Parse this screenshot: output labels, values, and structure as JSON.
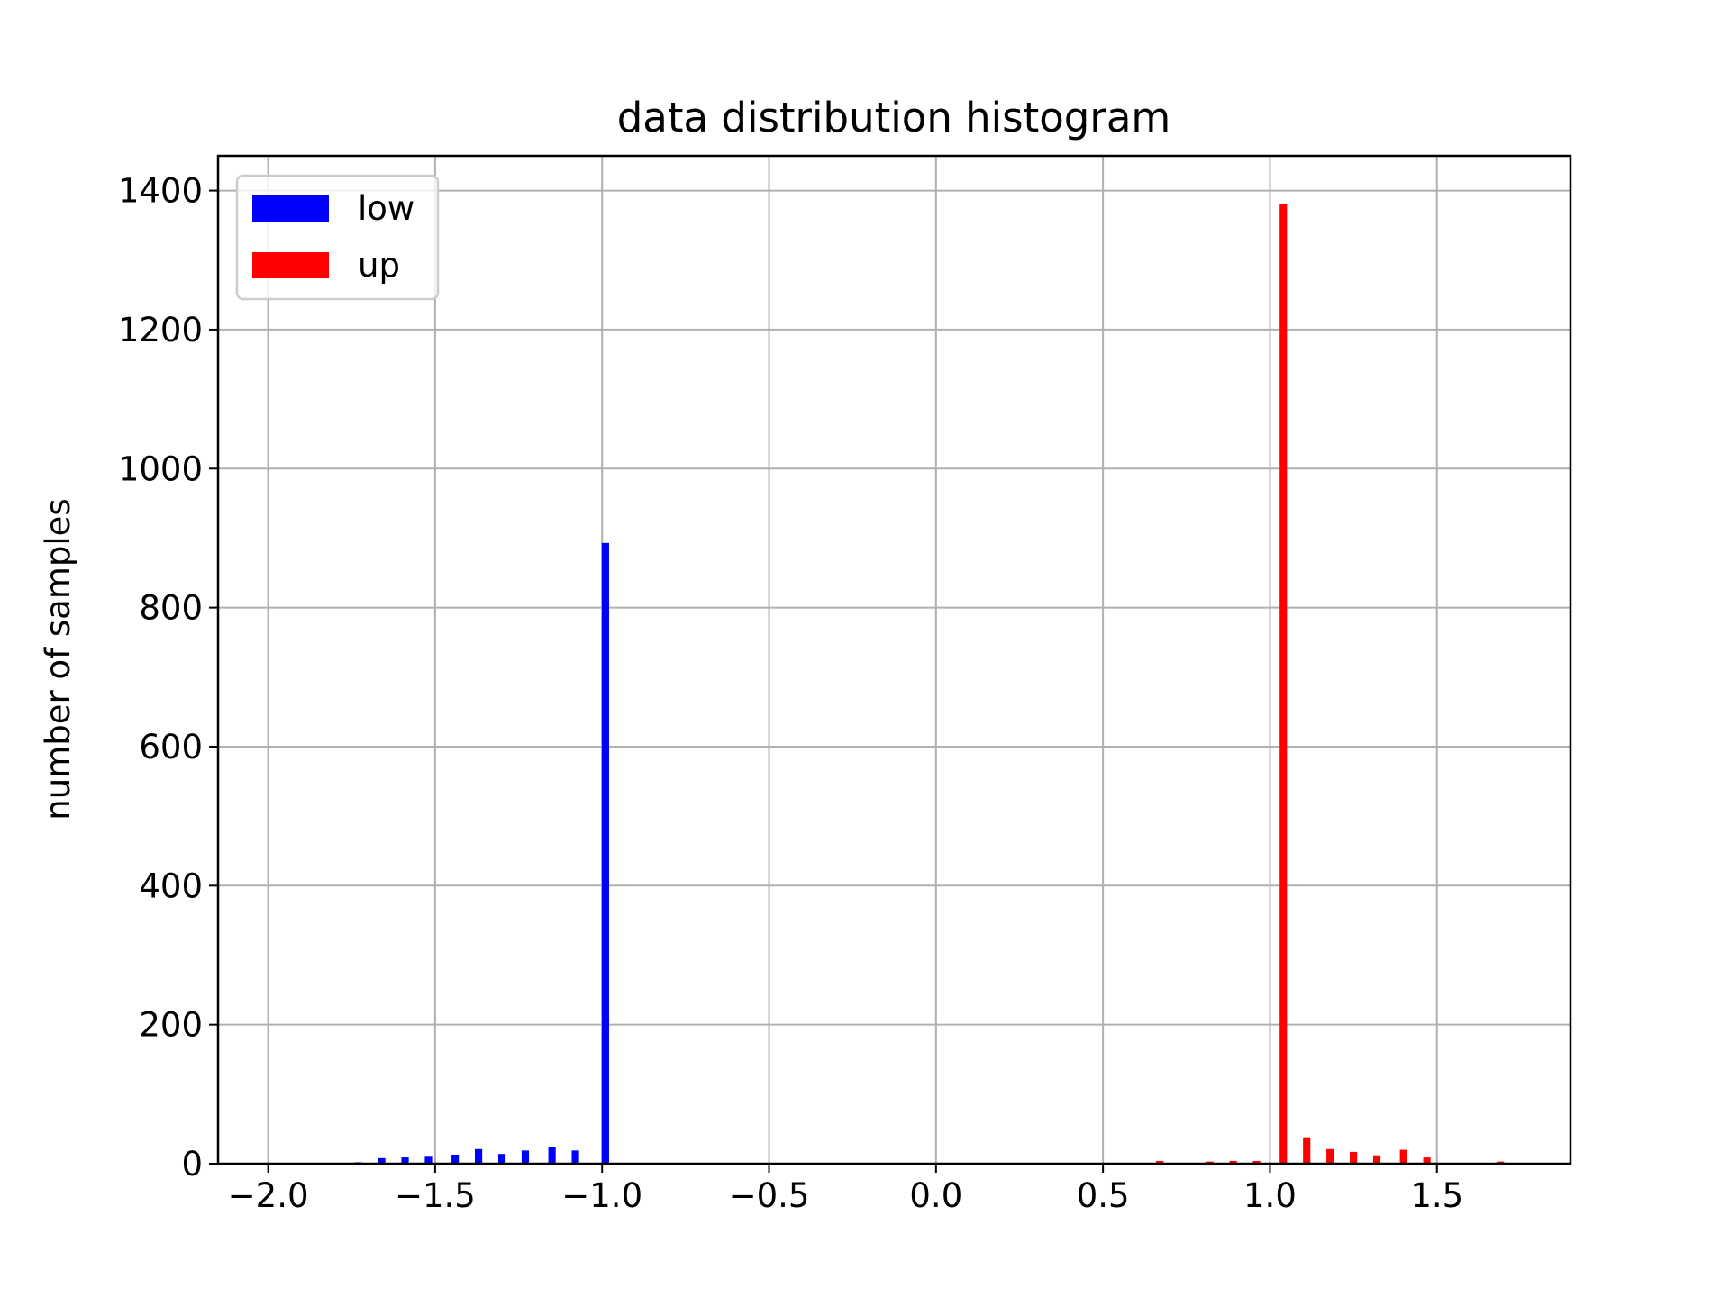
{
  "chart_data": {
    "type": "bar",
    "title": "data distribution histogram",
    "xlabel": "",
    "ylabel": "number of samples",
    "xlim": [
      -2.15,
      1.9
    ],
    "ylim": [
      0,
      1450
    ],
    "xticks": [
      -2.0,
      -1.5,
      -1.0,
      -0.5,
      0.0,
      0.5,
      1.0,
      1.5
    ],
    "xtick_labels": [
      "−2.0",
      "−1.5",
      "−1.0",
      "−0.5",
      "0.0",
      "0.5",
      "1.0",
      "1.5"
    ],
    "yticks": [
      0,
      200,
      400,
      600,
      800,
      1000,
      1200,
      1400
    ],
    "ytick_labels": [
      "0",
      "200",
      "400",
      "600",
      "800",
      "1000",
      "1200",
      "1400"
    ],
    "grid": true,
    "legend": {
      "position": "top-left"
    },
    "series": [
      {
        "name": "low",
        "color": "#0000ff",
        "x": [
          -1.73,
          -1.66,
          -1.59,
          -1.52,
          -1.44,
          -1.37,
          -1.3,
          -1.23,
          -1.15,
          -1.08,
          -0.99
        ],
        "values": [
          2,
          8,
          9,
          10,
          13,
          21,
          14,
          19,
          24,
          19,
          893
        ]
      },
      {
        "name": "up",
        "color": "#ff0000",
        "x": [
          0.67,
          0.82,
          0.89,
          0.96,
          1.04,
          1.11,
          1.18,
          1.25,
          1.32,
          1.4,
          1.47,
          1.69
        ],
        "values": [
          4,
          3,
          4,
          4,
          1380,
          38,
          21,
          17,
          12,
          20,
          9,
          3
        ]
      }
    ]
  }
}
